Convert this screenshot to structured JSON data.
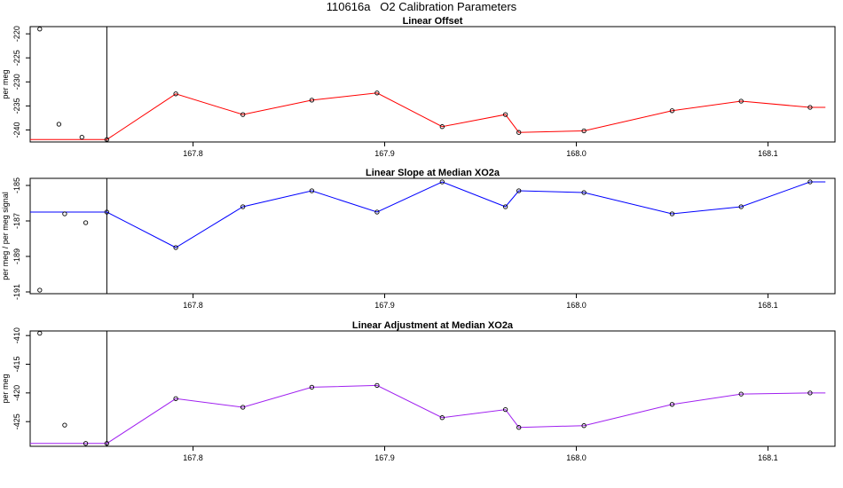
{
  "title": "110616a   O2 Calibration Parameters",
  "chart_data": [
    {
      "type": "line",
      "title": "Linear Offset",
      "ylabel": "per meg",
      "xlim": [
        167.715,
        168.135
      ],
      "ylim": [
        -242.5,
        -218.5
      ],
      "xticks": [
        167.8,
        167.9,
        168.0,
        168.1
      ],
      "xtick_labels": [
        "167.8",
        "167.9",
        "168.0",
        "168.1"
      ],
      "yticks": [
        -220,
        -225,
        -230,
        -235,
        -240
      ],
      "ytick_labels": [
        "-220",
        "-225",
        "-230",
        "-235",
        "-240"
      ],
      "series_color": "#ff0000",
      "points": {
        "x": [
          167.72,
          167.73,
          167.742,
          167.755,
          167.791,
          167.826,
          167.862,
          167.896,
          167.93,
          167.963,
          167.97,
          168.004,
          168.05,
          168.086,
          168.122
        ],
        "y": [
          -219.0,
          -238.8,
          -241.5,
          -242.0,
          -232.5,
          -236.8,
          -233.8,
          -232.3,
          -239.3,
          -236.8,
          -240.5,
          -240.2,
          -236.0,
          -234.0,
          -235.3
        ]
      },
      "line": {
        "x": [
          167.715,
          167.755,
          167.791,
          167.826,
          167.862,
          167.896,
          167.93,
          167.963,
          167.97,
          168.004,
          168.05,
          168.086,
          168.122,
          168.13
        ],
        "y": [
          -242.0,
          -242.0,
          -232.5,
          -236.8,
          -233.8,
          -232.3,
          -239.3,
          -236.8,
          -240.5,
          -240.2,
          -236.0,
          -234.0,
          -235.3,
          -235.3
        ]
      },
      "vline_x": 167.755
    },
    {
      "type": "line",
      "title": "Linear Slope at Median XO2a",
      "ylabel": "per meg / per meg signal",
      "xlim": [
        167.715,
        168.135
      ],
      "ylim": [
        -191.1,
        -184.6
      ],
      "xticks": [
        167.8,
        167.9,
        168.0,
        168.1
      ],
      "xtick_labels": [
        "167.8",
        "167.9",
        "168.0",
        "168.1"
      ],
      "yticks": [
        -185,
        -187,
        -189,
        -191
      ],
      "ytick_labels": [
        "-185",
        "-187",
        "-189",
        "-191"
      ],
      "series_color": "#0000ff",
      "points": {
        "x": [
          167.72,
          167.733,
          167.744,
          167.755,
          167.791,
          167.826,
          167.862,
          167.896,
          167.93,
          167.963,
          167.97,
          168.004,
          168.05,
          168.086,
          168.122
        ],
        "y": [
          -190.9,
          -186.6,
          -187.1,
          -186.5,
          -188.5,
          -186.2,
          -185.3,
          -186.5,
          -184.8,
          -186.2,
          -185.3,
          -185.4,
          -186.6,
          -186.2,
          -184.8
        ]
      },
      "line": {
        "x": [
          167.715,
          167.755,
          167.791,
          167.826,
          167.862,
          167.896,
          167.93,
          167.963,
          167.97,
          168.004,
          168.05,
          168.086,
          168.122,
          168.13
        ],
        "y": [
          -186.5,
          -186.5,
          -188.5,
          -186.2,
          -185.3,
          -186.5,
          -184.8,
          -186.2,
          -185.3,
          -185.4,
          -186.6,
          -186.2,
          -184.8,
          -184.8
        ]
      },
      "vline_x": 167.755
    },
    {
      "type": "line",
      "title": "Linear Adjustment at Median XO2a",
      "ylabel": "per meg",
      "xlim": [
        167.715,
        168.135
      ],
      "ylim": [
        -429.3,
        -409.2
      ],
      "xticks": [
        167.8,
        167.9,
        168.0,
        168.1
      ],
      "xtick_labels": [
        "167.8",
        "167.9",
        "168.0",
        "168.1"
      ],
      "yticks": [
        -410,
        -415,
        -420,
        -425
      ],
      "ytick_labels": [
        "-410",
        "-415",
        "-420",
        "-425"
      ],
      "series_color": "#a020f0",
      "points": {
        "x": [
          167.72,
          167.733,
          167.744,
          167.755,
          167.791,
          167.826,
          167.862,
          167.896,
          167.93,
          167.963,
          167.97,
          168.004,
          168.05,
          168.086,
          168.122
        ],
        "y": [
          -409.6,
          -425.6,
          -428.8,
          -428.8,
          -421.0,
          -422.5,
          -419.0,
          -418.7,
          -424.3,
          -422.9,
          -426.0,
          -425.7,
          -422.0,
          -420.2,
          -420.0
        ]
      },
      "line": {
        "x": [
          167.715,
          167.755,
          167.791,
          167.826,
          167.862,
          167.896,
          167.93,
          167.963,
          167.97,
          168.004,
          168.05,
          168.086,
          168.122,
          168.13
        ],
        "y": [
          -428.8,
          -428.8,
          -421.0,
          -422.5,
          -419.0,
          -418.7,
          -424.3,
          -422.9,
          -426.0,
          -425.7,
          -422.0,
          -420.2,
          -420.0,
          -420.0
        ]
      },
      "vline_x": 167.755
    }
  ]
}
